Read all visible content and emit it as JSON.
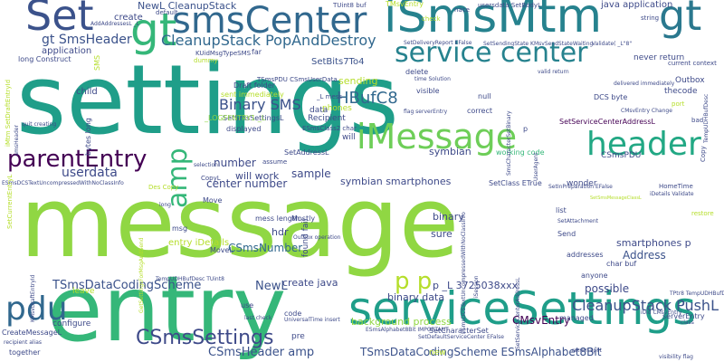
{
  "words": [
    {
      "text": "settings",
      "color": "#1f9e89"
    },
    {
      "text": "message",
      "color": "#90d743"
    },
    {
      "text": "entry",
      "color": "#35b779"
    },
    {
      "text": "serviceSettings",
      "color": "#1f9e89"
    },
    {
      "text": "iSmsMtm",
      "color": "#26828e"
    },
    {
      "text": "smsCenter",
      "color": "#31688e"
    },
    {
      "text": "Set",
      "color": "#3b528b"
    },
    {
      "text": "gt",
      "color": "#2a788e"
    },
    {
      "text": "gt",
      "color": "#35b779"
    },
    {
      "text": "service center",
      "color": "#26828e"
    },
    {
      "text": "header",
      "color": "#22a884"
    },
    {
      "text": "iMessage",
      "color": "#6ece58"
    },
    {
      "text": "amp",
      "color": "#35b779"
    },
    {
      "text": "parentEntry",
      "color": "#440154"
    },
    {
      "text": "pdu",
      "color": "#31688e"
    },
    {
      "text": "CSmsSettings",
      "color": "#3e4a89"
    },
    {
      "text": "CleanupStack PopAndDestroy",
      "color": "#31688e"
    },
    {
      "text": "gt SmsHeader",
      "color": "#3b528b"
    },
    {
      "text": "p p",
      "color": "#b5de2b"
    },
    {
      "text": "CleanupStack PushL",
      "color": "#3b528b"
    },
    {
      "text": "Binary SMS",
      "color": "#3b528b"
    },
    {
      "text": "HBufC8",
      "color": "#31688e"
    },
    {
      "text": "number",
      "color": "#3e4a89"
    },
    {
      "text": "center number",
      "color": "#3e4a89"
    },
    {
      "text": "CSmsNumber",
      "color": "#31688e"
    },
    {
      "text": "TSmsDataCodingScheme",
      "color": "#3b528b"
    },
    {
      "text": "CSmsHeader amp",
      "color": "#3b528b"
    },
    {
      "text": "TSmsDataCodingScheme ESmsAlphabet8Bit",
      "color": "#3b528b"
    },
    {
      "text": "NewL",
      "color": "#3b528b"
    },
    {
      "text": "binary data",
      "color": "#3e4a89"
    },
    {
      "text": "CMsvEntry",
      "color": "#440154"
    },
    {
      "text": "background process",
      "color": "#90d743"
    },
    {
      "text": "Address",
      "color": "#3b528b"
    },
    {
      "text": "possible",
      "color": "#3e4a89"
    },
    {
      "text": "smartphones p",
      "color": "#3e4a89"
    },
    {
      "text": "sample",
      "color": "#3e4a89"
    },
    {
      "text": "will work",
      "color": "#3e4a89"
    },
    {
      "text": "symbian smartphones",
      "color": "#3e4a89"
    },
    {
      "text": "symbian",
      "color": "#3e4a89"
    },
    {
      "text": "userdata",
      "color": "#3e4a89"
    },
    {
      "text": "create java",
      "color": "#3e4a89"
    },
    {
      "text": "binary",
      "color": "#3e4a89"
    },
    {
      "text": "sure",
      "color": "#3e4a89"
    },
    {
      "text": "hdr",
      "color": "#3e4a89"
    },
    {
      "text": "p _L 3725038xxx",
      "color": "#3e4a89"
    },
    {
      "text": "NewL CleanupStack",
      "color": "#3b528b"
    },
    {
      "text": "java application",
      "color": "#3e4a89"
    },
    {
      "text": "sending",
      "color": "#b5de2b"
    },
    {
      "text": "SetBits7To4",
      "color": "#3b528b"
    },
    {
      "text": "create",
      "color": "#3e4a89"
    },
    {
      "text": "application",
      "color": "#3e4a89"
    },
    {
      "text": "never return",
      "color": "#3e4a89"
    },
    {
      "text": "Outbox",
      "color": "#3e4a89"
    },
    {
      "text": "thecode",
      "color": "#3e4a89"
    },
    {
      "text": "correct",
      "color": "#3e4a89"
    },
    {
      "text": "delete",
      "color": "#3e4a89"
    },
    {
      "text": "visible",
      "color": "#3e4a89"
    },
    {
      "text": "null",
      "color": "#3e4a89"
    },
    {
      "text": "child",
      "color": "#3e4a89"
    },
    {
      "text": "Recipient",
      "color": "#3e4a89"
    },
    {
      "text": "phones",
      "color": "#b5de2b"
    },
    {
      "text": "data",
      "color": "#3e4a89"
    },
    {
      "text": "will",
      "color": "#3e4a89"
    },
    {
      "text": "SetServiceCenterAddressL",
      "color": "#440154"
    },
    {
      "text": "DCS byte",
      "color": "#3e4a89"
    },
    {
      "text": "SetAddressL",
      "color": "#3e4a89"
    },
    {
      "text": "SetSmsSettingsL",
      "color": "#3e4a89"
    },
    {
      "text": "_LOGFENTRY1 _L",
      "color": "#90d743"
    },
    {
      "text": "sent immediately",
      "color": "#b5de2b"
    },
    {
      "text": "Draft folder",
      "color": "#3e4a89"
    },
    {
      "text": "displayed",
      "color": "#3e4a89"
    },
    {
      "text": "wonder",
      "color": "#3e4a89"
    },
    {
      "text": "CSmsPDU",
      "color": "#3e4a89"
    },
    {
      "text": "SetClass ETrue",
      "color": "#3e4a89"
    },
    {
      "text": "working code",
      "color": "#35b779"
    },
    {
      "text": "char buf",
      "color": "#3e4a89"
    },
    {
      "text": "anyone",
      "color": "#3e4a89"
    },
    {
      "text": "managed",
      "color": "#3e4a89"
    },
    {
      "text": "Send",
      "color": "#3e4a89"
    },
    {
      "text": "list",
      "color": "#3e4a89"
    },
    {
      "text": "addresses",
      "color": "#3e4a89"
    },
    {
      "text": "mess length",
      "color": "#3e4a89"
    },
    {
      "text": "found fail",
      "color": "#3e4a89"
    },
    {
      "text": "Mostly",
      "color": "#3e4a89"
    },
    {
      "text": "Move",
      "color": "#3e4a89"
    },
    {
      "text": "msg",
      "color": "#3e4a89"
    },
    {
      "text": "entry iDetails",
      "color": "#b5de2b"
    },
    {
      "text": "MoveL",
      "color": "#3e4a89"
    },
    {
      "text": "leave",
      "color": "#b5de2b"
    },
    {
      "text": "configure",
      "color": "#3e4a89"
    },
    {
      "text": "CreateMessageL",
      "color": "#3e4a89"
    },
    {
      "text": "together",
      "color": "#3e4a89"
    },
    {
      "text": "pre",
      "color": "#3e4a89"
    },
    {
      "text": "code",
      "color": "#3e4a89"
    },
    {
      "text": "use",
      "color": "#3e4a89"
    },
    {
      "text": "new",
      "color": "#b5de2b"
    },
    {
      "text": "serverEntry",
      "color": "#3e4a89"
    },
    {
      "text": "SetCharacterSet",
      "color": "#3e4a89"
    },
    {
      "text": "far",
      "color": "#3e4a89"
    },
    {
      "text": "default",
      "color": "#3e4a89"
    },
    {
      "text": "TUint8 buf",
      "color": "#3e4a89"
    },
    {
      "text": "TMsvEntry",
      "color": "#b5de2b"
    },
    {
      "text": "usersdata SetBodyL",
      "color": "#3e4a89"
    },
    {
      "text": "string",
      "color": "#3e4a89"
    },
    {
      "text": "current context",
      "color": "#3e4a89"
    },
    {
      "text": "SMS",
      "color": "#b5de2b"
    },
    {
      "text": "dummy",
      "color": "#b5de2b"
    },
    {
      "text": "long Construct",
      "color": "#3e4a89"
    },
    {
      "text": "bytes long",
      "color": "#3e4a89"
    },
    {
      "text": "assume",
      "color": "#3e4a89"
    },
    {
      "text": "selection",
      "color": "#3e4a89"
    },
    {
      "text": "CopyL",
      "color": "#3e4a89"
    },
    {
      "text": "Des Copy",
      "color": "#b5de2b"
    },
    {
      "text": "KUidMsgTypeSMS",
      "color": "#3e4a89"
    },
    {
      "text": "_L mess",
      "color": "#3e4a89"
    },
    {
      "text": "TSmsPDU CSmsUserData",
      "color": "#3e4a89"
    },
    {
      "text": "HomeTime",
      "color": "#3e4a89"
    },
    {
      "text": "p",
      "color": "#3e4a89"
    },
    {
      "text": "nace",
      "color": "#3e4a89"
    },
    {
      "text": "check",
      "color": "#b5de2b"
    },
    {
      "text": "bad",
      "color": "#3e4a89"
    },
    {
      "text": "port",
      "color": "#b5de2b"
    },
    {
      "text": "restore",
      "color": "#b5de2b"
    },
    {
      "text": "Copy",
      "color": "#3e4a89"
    },
    {
      "text": "iDetails Validate",
      "color": "#3e4a89"
    },
    {
      "text": "TempUDHBufDesc",
      "color": "#3e4a89"
    },
    {
      "text": "ESmsDCSTextUncompressedWithNoClassInfo",
      "color": "#3e4a89"
    },
    {
      "text": "UniversalTime insert",
      "color": "#3e4a89"
    },
    {
      "text": "CMsvEntry Change",
      "color": "#3e4a89"
    },
    {
      "text": "SetSmsMessageClassL",
      "color": "#b5de2b"
    },
    {
      "text": "ESmsClass2 char",
      "color": "#3e4a89"
    },
    {
      "text": "SetDeliveryReport EFalse",
      "color": "#3e4a89"
    },
    {
      "text": "SetSendingState KMsvSendStateWaiting",
      "color": "#3e4a89"
    },
    {
      "text": "delivered immediately",
      "color": "#3e4a89"
    },
    {
      "text": "quit creating",
      "color": "#3e4a89"
    },
    {
      "text": "long",
      "color": "#3e4a89"
    },
    {
      "text": "SetInPreparation EFalse",
      "color": "#3e4a89"
    },
    {
      "text": "SetAttachment",
      "color": "#3e4a89"
    },
    {
      "text": "Outbox operation",
      "color": "#3e4a89"
    },
    {
      "text": "time Solution",
      "color": "#3e4a89"
    },
    {
      "text": "valid return",
      "color": "#3e4a89"
    },
    {
      "text": "return split",
      "color": "#3e4a89"
    },
    {
      "text": "recipient alias",
      "color": "#3e4a89"
    },
    {
      "text": "TempUDHBufDesc TUint8",
      "color": "#3e4a89"
    },
    {
      "text": "TPtr8 TempUDHBufDesc",
      "color": "#3e4a89"
    },
    {
      "text": "iUid CMsvEntry",
      "color": "#3e4a89"
    },
    {
      "text": "class",
      "color": "#3e4a89"
    },
    {
      "text": "visibility flag",
      "color": "#3e4a89"
    },
    {
      "text": "last check",
      "color": "#3e4a89"
    },
    {
      "text": "ESmsAlphabet8Bit IMPORTANT",
      "color": "#3e4a89"
    },
    {
      "text": "SetDefaultServiceCenter EFalse",
      "color": "#3e4a89"
    },
    {
      "text": "ESmsDCSTextUncompressedWithNoClassInfo",
      "color": "#3e4a89"
    },
    {
      "text": "AddAddressesL _L",
      "color": "#3e4a89"
    },
    {
      "text": "Validate( _L\"8\"",
      "color": "#3e4a89"
    },
    {
      "text": "smsHeader",
      "color": "#3e4a89"
    },
    {
      "text": "SmsCharacterSetBinary",
      "color": "#3e4a89"
    },
    {
      "text": "iMtm SetDraftEntryId",
      "color": "#b5de2b"
    },
    {
      "text": "SetCurrentEntryL",
      "color": "#b5de2b"
    },
    {
      "text": "iSession",
      "color": "#3e4a89"
    },
    {
      "text": "SetServiceCenterAddressL",
      "color": "#3e4a89"
    },
    {
      "text": "GetSettingsForMsgAndSend",
      "color": "#b5de2b"
    },
    {
      "text": "KMsvDraftEntryId",
      "color": "#3e4a89"
    },
    {
      "text": "UserAgent",
      "color": "#3e4a89"
    },
    {
      "text": "flag serverEntry",
      "color": "#3e4a89"
    }
  ]
}
